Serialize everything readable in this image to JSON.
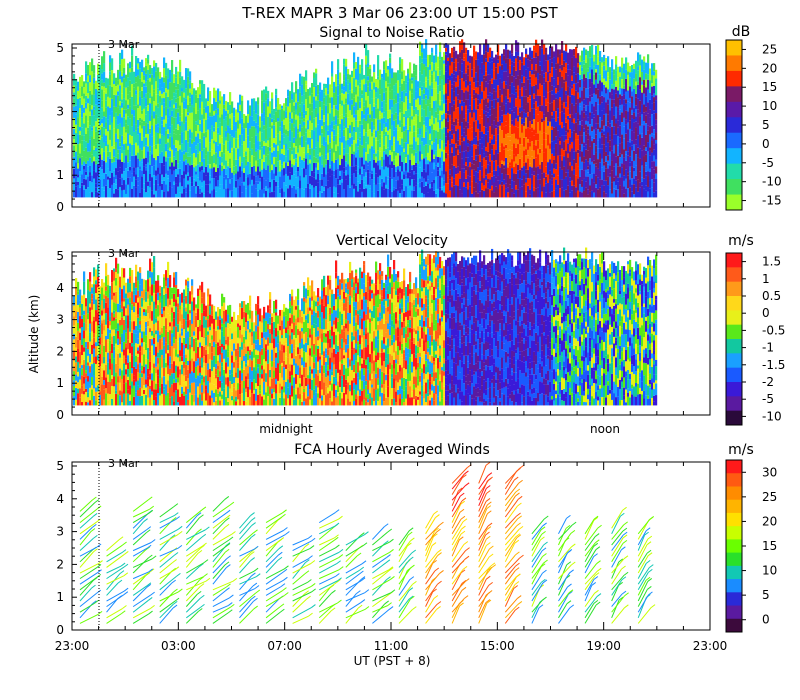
{
  "header": {
    "title": "T-REX   MAPR   3 Mar 06   23:00 UT   15:00   PST"
  },
  "chart_data": [
    {
      "type": "heatmap",
      "title": "Signal to Noise Ratio",
      "ylim": [
        0,
        5
      ],
      "yticks": [
        "0",
        "1",
        "2",
        "3",
        "4",
        "5"
      ],
      "date_marker": {
        "label": "3 Mar",
        "x_hours": 1.0
      },
      "colorbar": {
        "unit": "dB",
        "labels": [
          "25",
          "20",
          "15",
          "10",
          "5",
          "0",
          "-5",
          "-10",
          "-15"
        ],
        "colors": [
          "#ffc000",
          "#ff7a00",
          "#ff2a00",
          "#7a1a66",
          "#5a1aa8",
          "#2a2ad8",
          "#1a6aff",
          "#12b4ff",
          "#22dcaa",
          "#40e060",
          "#9aff2a"
        ]
      },
      "data_extent_hours": [
        0,
        22
      ]
    },
    {
      "type": "heatmap",
      "title": "Vertical Velocity",
      "ylabel": "Altitude (km)",
      "ylim": [
        0,
        5
      ],
      "yticks": [
        "0",
        "1",
        "2",
        "3",
        "4",
        "5"
      ],
      "date_marker": {
        "label": "3 Mar",
        "x_hours": 1.0
      },
      "time_labels": [
        {
          "label": "midnight",
          "x_hours": 8
        },
        {
          "label": "noon",
          "x_hours": 20
        }
      ],
      "colorbar": {
        "unit": "m/s",
        "labels": [
          "1.5",
          "1",
          "0.5",
          "0",
          "-0.5",
          "-1",
          "-1.5",
          "-2",
          "-5",
          "-10"
        ],
        "colors": [
          "#ff1a1a",
          "#ff5a1a",
          "#ff9a1a",
          "#ffd81a",
          "#e8f01a",
          "#5ae81a",
          "#12c8a0",
          "#1aa0ff",
          "#1a5aff",
          "#3a1ad8",
          "#5a1aa0",
          "#2a0a3a"
        ]
      },
      "data_extent_hours": [
        0,
        22
      ]
    },
    {
      "type": "scatter",
      "title": "FCA Hourly Averaged Winds",
      "xlabel": "UT  (PST + 8)",
      "ylim": [
        0,
        5
      ],
      "yticks": [
        "0",
        "1",
        "2",
        "3",
        "4",
        "5"
      ],
      "xlim": [
        0,
        24
      ],
      "xticks": [
        "23:00",
        "03:00",
        "07:00",
        "11:00",
        "15:00",
        "19:00",
        "23:00"
      ],
      "date_marker": {
        "label": "3 Mar",
        "x_hours": 1.0
      },
      "colorbar": {
        "unit": "m/s",
        "labels": [
          "30",
          "25",
          "20",
          "15",
          "10",
          "5",
          "0"
        ],
        "colors": [
          "#ff1a1a",
          "#ff5a12",
          "#ff8c00",
          "#ffb400",
          "#ffe000",
          "#c8ff00",
          "#6aff00",
          "#2ae02a",
          "#12c8b4",
          "#1a8cff",
          "#2a2ad8",
          "#5a1aa0",
          "#3c0a3c"
        ]
      },
      "wind_columns_hours": [
        0,
        1,
        2,
        3,
        4,
        5,
        6,
        7,
        8,
        9,
        10,
        11,
        12,
        13,
        14,
        15,
        16,
        17,
        18,
        19,
        20,
        21
      ]
    }
  ]
}
